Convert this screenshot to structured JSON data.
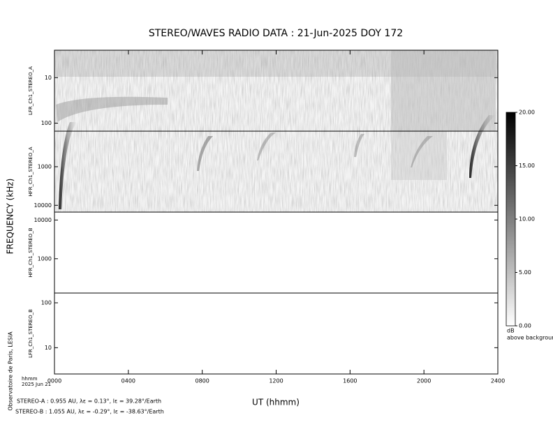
{
  "chart_data": {
    "type": "spectrogram",
    "title": "STEREO/WAVES  RADIO  DATA : 21-Jun-2025  DOY 172",
    "x_label": "UT (hhmm)",
    "y_label": "FREQUENCY (kHz)",
    "xlim": [
      0,
      24
    ],
    "xticks": [
      {
        "value": 0,
        "label": "0000"
      },
      {
        "value": 4,
        "label": "0400"
      },
      {
        "value": 8,
        "label": "0800"
      },
      {
        "value": 12,
        "label": "1200"
      },
      {
        "value": 16,
        "label": "1600"
      },
      {
        "value": 20,
        "label": "2000"
      },
      {
        "value": 24,
        "label": "2400"
      }
    ],
    "panels": [
      {
        "name": "LFR_Ch1_STEREO_A",
        "log_scale": true,
        "invert": true,
        "ylim": [
          2.5,
          150
        ],
        "yticks": [
          10,
          100
        ]
      },
      {
        "name": "HFR_Ch1_STEREO_A",
        "log_scale": true,
        "invert": true,
        "ylim": [
          120,
          15000
        ],
        "yticks": [
          1000,
          10000
        ]
      },
      {
        "name": "HFR_Ch1_STEREO_B",
        "log_scale": true,
        "invert": false,
        "ylim": [
          130,
          16000
        ],
        "yticks": [
          1000,
          10000
        ]
      },
      {
        "name": "LFR_Ch1_STEREO_B",
        "log_scale": true,
        "invert": false,
        "ylim": [
          2.6,
          165
        ],
        "yticks": [
          10,
          100
        ]
      }
    ],
    "colorbar": {
      "ylim": [
        0,
        20
      ],
      "yticks": [
        {
          "value": 0,
          "label": "0.00"
        },
        {
          "value": 5,
          "label": "5.00"
        },
        {
          "value": 10,
          "label": "10.00"
        },
        {
          "value": 15,
          "label": "15.00"
        },
        {
          "value": 20,
          "label": "20.00"
        }
      ],
      "label": "dB",
      "sublabel": "above background"
    }
  },
  "footer": {
    "time_label": "hhmm",
    "date": "2025 Jun 21",
    "credit": "Observatoire de Paris, LESIA",
    "stereo_a": "STEREO-A : 0.955 AU, λε = 0.13°, lε = 39.28°/Earth",
    "stereo_b": "STEREO-B : 1.055 AU, λε = -0.29°, lε = -38.63°/Earth"
  }
}
